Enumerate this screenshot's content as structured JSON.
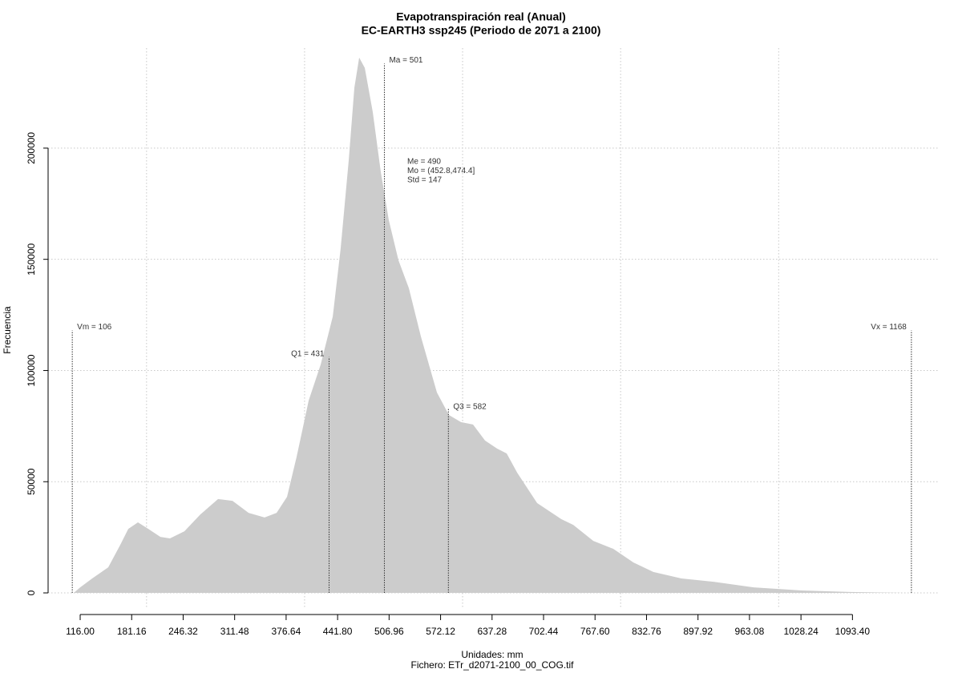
{
  "chart_data": {
    "type": "area",
    "title": "Evapotranspiración real (Anual)",
    "subtitle": "EC-EARTH3 ssp245 (Periodo de 2071 a 2100)",
    "x_label": "Unidades: mm",
    "caption": "Fichero: ETr_d2071-2100_00_COG.tif",
    "y_label": "Frecuencia",
    "color": "#cccccc",
    "grid": true,
    "x": [
      107.9,
      116,
      131.2,
      151.5,
      166.7,
      176.9,
      189.1,
      202.2,
      217.5,
      229.6,
      247.9,
      268.2,
      290.5,
      308.8,
      329.1,
      349.4,
      364.6,
      377.8,
      390,
      405.2,
      420.4,
      435.7,
      445.7,
      455.9,
      463,
      469.1,
      476.2,
      486.3,
      496.5,
      506.6,
      518.8,
      532,
      547.2,
      567.5,
      582.7,
      598,
      613.2,
      628.4,
      643.6,
      655.8,
      669,
      694.3,
      724.8,
      740,
      765.4,
      790.7,
      816.1,
      841.4,
      876.9,
      917.6,
      968.3,
      1029.2,
      1090.1,
      1161.1
    ],
    "values": [
      0,
      2500,
      6500,
      11500,
      21600,
      28800,
      31700,
      28800,
      25200,
      24500,
      27700,
      35300,
      42200,
      41400,
      36000,
      33900,
      36000,
      43200,
      61300,
      86500,
      102700,
      124300,
      155000,
      194600,
      227100,
      240700,
      236100,
      216200,
      189200,
      167600,
      149600,
      137000,
      115300,
      90100,
      80000,
      76800,
      75700,
      68500,
      64900,
      62700,
      54100,
      40400,
      33200,
      30600,
      23400,
      19800,
      13700,
      9400,
      6500,
      5000,
      2500,
      1100,
      400,
      0
    ],
    "xlim": [
      75.4,
      1201.6
    ],
    "ylim": [
      -7200,
      245000
    ],
    "xticks": [
      {
        "value": 116,
        "label": "116.00"
      },
      181.16,
      246.32,
      311.48,
      376.64,
      {
        "value": 441.8,
        "label": "441.80"
      },
      506.96,
      572.12,
      637.28,
      702.44,
      {
        "value": 767.6,
        "label": "767.60"
      },
      832.76,
      897.92,
      963.08,
      1028.24,
      {
        "value": 1093.4,
        "label": "1093.40"
      }
    ],
    "xgrid": [
      200,
      400,
      600,
      800,
      1000
    ],
    "yticks": [
      0,
      50000,
      100000,
      150000,
      200000
    ],
    "annotations": [
      {
        "label": "Vm = 106",
        "x": 106,
        "y": 118000
      },
      {
        "label": "Q1 = 431",
        "x": 431,
        "y": 106000
      },
      {
        "label": "Ma = 501",
        "x": 501,
        "y": 238000
      },
      {
        "label": "Q3 = 582",
        "x": 582,
        "y": 83000
      },
      {
        "label": "Vx = 1168",
        "x": 1168,
        "y": 118000
      }
    ],
    "stats_text": [
      "Me = 490",
      "Mo = (452.8,474.4]",
      "Std = 147"
    ]
  }
}
